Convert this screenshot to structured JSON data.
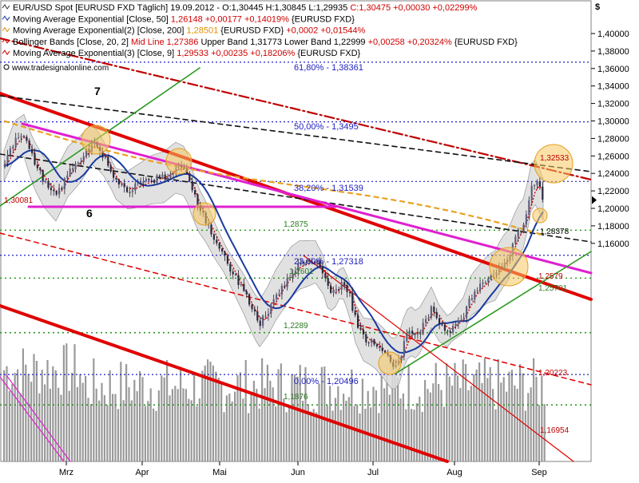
{
  "legend": [
    {
      "text": "EUR/USD Spot [EURUSD FXD  Täglich] 19.09.2012 - O:1,30445 H:1,30845 L:1,29935 ",
      "extra": "C:1,30475 +0,00030 +0,02299%",
      "extra_color": "#d00000",
      "swatch": "#303030"
    },
    {
      "text": "Moving Average Exponential [Close, 50] ",
      "extra": "1,26148 +0,00177 +0,14019%",
      "extra_color": "#d00000",
      "after": " {EURUSD FXD}",
      "swatch": "#1a3aa0"
    },
    {
      "text": "Moving Average Exponential(2) [Close, 200] ",
      "extra": "1,28501",
      "extra_color": "#e09000",
      "extra2": " +0,0002 +0,01544%",
      "extra2_color": "#d00000",
      "after": " {EURUSD FXD}",
      "swatch": "#e09000"
    },
    {
      "text": "Bollinger Bands [Close, 20, 2] ",
      "extra": "Mid Line 1,27386",
      "extra_color": "#d00000",
      "after": " Upper Band 1,31773 Lower Band 1,22999 ",
      "extra2": "+0,00258 +0,20324%",
      "extra2_color": "#d00000",
      "after2": " {EURUSD FXD}",
      "swatch": "#d00000"
    },
    {
      "text": "Moving Average Exponential(3) [Close, 9] ",
      "extra": "1,29533 +0,00235 +0,18206%",
      "extra_color": "#d00000",
      "after": " {EURUSD FXD}",
      "swatch": "#d00000"
    }
  ],
  "watermark": "www.tradesignalonline.com",
  "currency_symbol": "$",
  "colors": {
    "bollinger_fill": "#dcdcdc",
    "ema50": "#1a3aa0",
    "ema200": "#e8a020",
    "ema9": "#d00000",
    "trend_red": "#e00000",
    "magenta": "#e020d0",
    "green": "#2a9a20",
    "fib": "#2020c0",
    "circle_fill": "#f7c860",
    "bar_up": "#606080",
    "bar_down": "#2a2a40",
    "volume": "#9a9a9a"
  },
  "chart_data": {
    "type": "candlestick",
    "symbol": "EUR/USD Spot",
    "x_labels": [
      "Mrz",
      "Apr",
      "Mai",
      "Jun",
      "Jul",
      "Aug",
      "Sep"
    ],
    "y_ticks": [
      "1,40000",
      "1,38000",
      "1,36000",
      "1,34000",
      "1,32000",
      "1,30000",
      "1,28000",
      "1,26000",
      "1,24000",
      "1,22000",
      "1,20000",
      "1,18000",
      "1,16000"
    ],
    "ylim": [
      1.152,
      1.418
    ],
    "fib_levels": [
      {
        "label": "61,80% - 1,38361",
        "value": 1.38361
      },
      {
        "label": "50,00% - 1,3495",
        "value": 1.3495
      },
      {
        "label": "38,20% - 1,31539",
        "value": 1.31539
      },
      {
        "label": "23,60% - 1,27318",
        "value": 1.27318
      },
      {
        "label": "0,00% - 1,20496",
        "value": 1.20496
      }
    ],
    "support_levels": [
      {
        "label": "1,2875",
        "value": 1.2875
      },
      {
        "label": "1,2601",
        "value": 1.2601
      },
      {
        "label": "1,2289",
        "value": 1.2289
      },
      {
        "label": "1,1876",
        "value": 1.1876
      }
    ],
    "price_labels": [
      {
        "label": "1,30081",
        "value": 1.30081
      },
      {
        "label": "1,32533",
        "value": 1.32533
      },
      {
        "label": "1,28378",
        "value": 1.28378
      },
      {
        "label": "1,2579",
        "value": 1.2579
      },
      {
        "label": "1,25701",
        "value": 1.25701
      },
      {
        "label": "1,20223",
        "value": 1.20223
      },
      {
        "label": "1,16954",
        "value": 1.16954
      }
    ],
    "wave_labels": [
      "7",
      "6"
    ],
    "last_close": 1.30475
  }
}
